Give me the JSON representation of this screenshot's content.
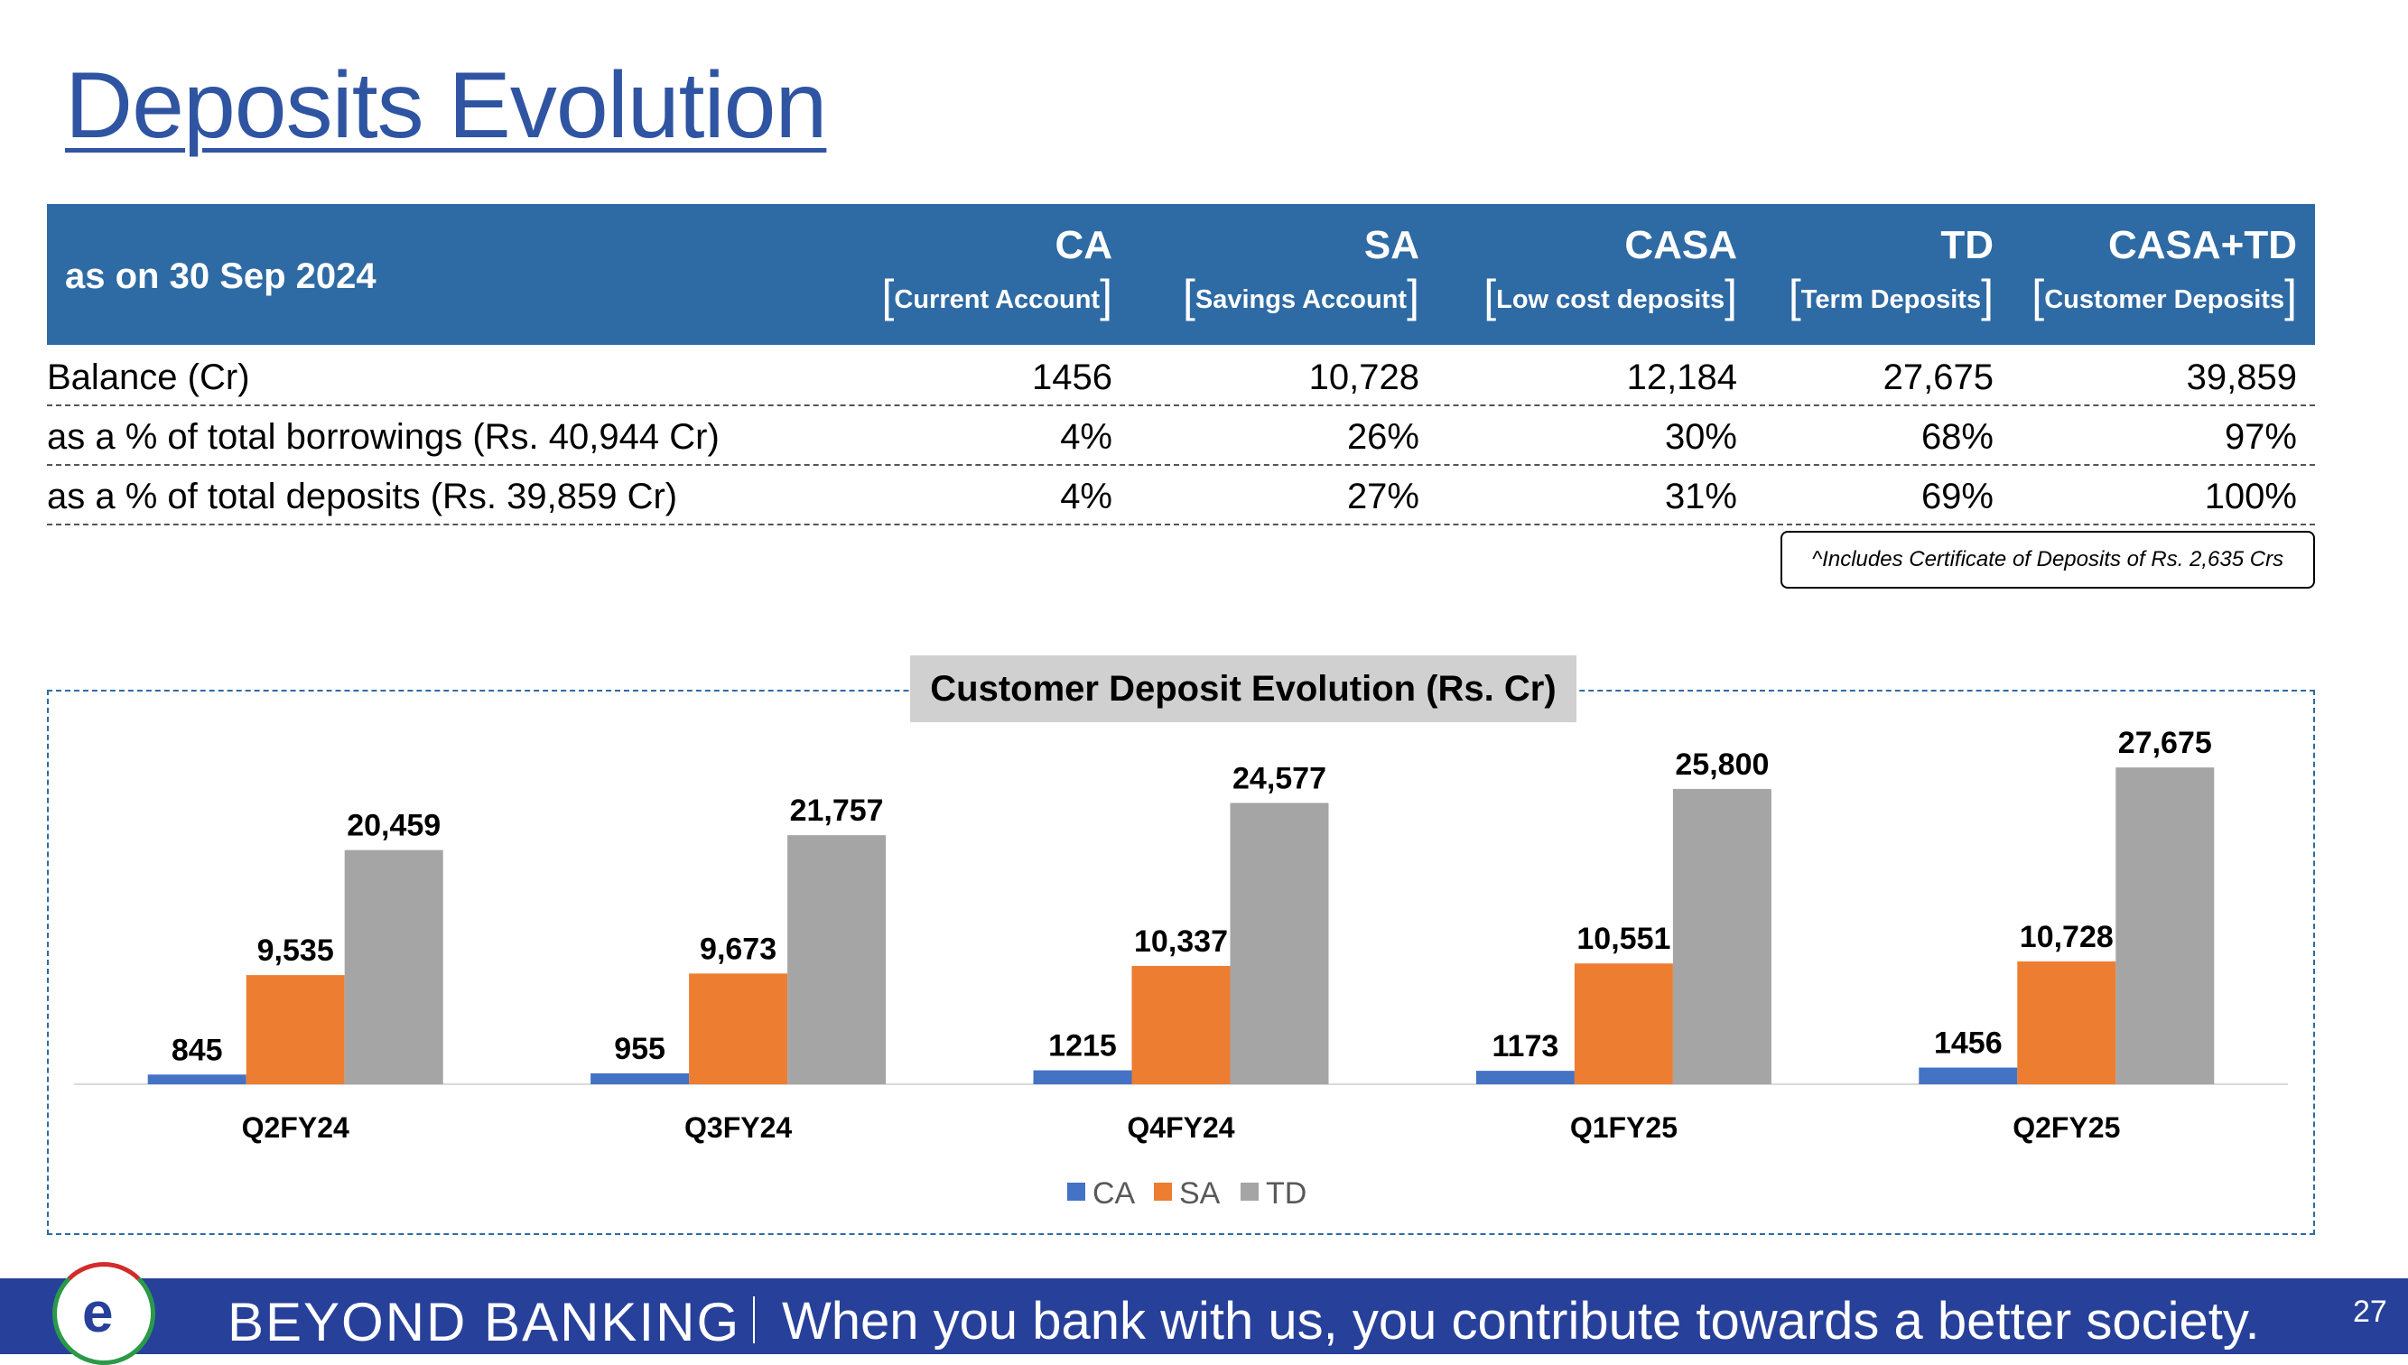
{
  "page_title": "Deposits Evolution",
  "table": {
    "as_on": "as on 30 Sep 2024",
    "columns": [
      {
        "name": "CA",
        "sub": "Current Account"
      },
      {
        "name": "SA",
        "sub": "Savings Account"
      },
      {
        "name": "CASA",
        "sub": "Low cost deposits"
      },
      {
        "name": "TD",
        "sub": "Term Deposits"
      },
      {
        "name": "CASA+TD",
        "sub": "Customer Deposits"
      }
    ],
    "rows": [
      {
        "label": "Balance (Cr)",
        "values": [
          "1456",
          "10,728",
          "12,184",
          "27,675",
          "39,859"
        ]
      },
      {
        "label": "as a % of total borrowings (Rs. 40,944 Cr)",
        "values": [
          "4%",
          "26%",
          "30%",
          "68%",
          "97%"
        ]
      },
      {
        "label": "as a % of total deposits (Rs. 39,859 Cr)",
        "values": [
          "4%",
          "27%",
          "31%",
          "69%",
          "100%"
        ]
      }
    ],
    "note": "^Includes Certificate of Deposits of Rs. 2,635 Crs"
  },
  "chart_data": {
    "type": "bar",
    "title": "Customer Deposit Evolution (Rs. Cr)",
    "categories": [
      "Q2FY24",
      "Q3FY24",
      "Q4FY24",
      "Q1FY25",
      "Q2FY25"
    ],
    "series": [
      {
        "name": "CA",
        "color": "#4472c4",
        "values": [
          845,
          955,
          1215,
          1173,
          1456
        ],
        "labels": [
          "845",
          "955",
          "1215",
          "1173",
          "1456"
        ]
      },
      {
        "name": "SA",
        "color": "#ed7d31",
        "values": [
          9535,
          9673,
          10337,
          10551,
          10728
        ],
        "labels": [
          "9,535",
          "9,673",
          "10,337",
          "10,551",
          "10,728"
        ]
      },
      {
        "name": "TD",
        "color": "#a5a5a5",
        "values": [
          20459,
          21757,
          24577,
          25800,
          27675
        ],
        "labels": [
          "20,459",
          "21,757",
          "24,577",
          "25,800",
          "27,675"
        ]
      }
    ],
    "ylim": [
      0,
      28000
    ],
    "legend": "bottom",
    "grid": false
  },
  "footer": {
    "logo_letter": "e",
    "brand": "BEYOND BANKING",
    "tagline": "When you bank with us, you contribute towards a better society.",
    "page_number": "27"
  }
}
